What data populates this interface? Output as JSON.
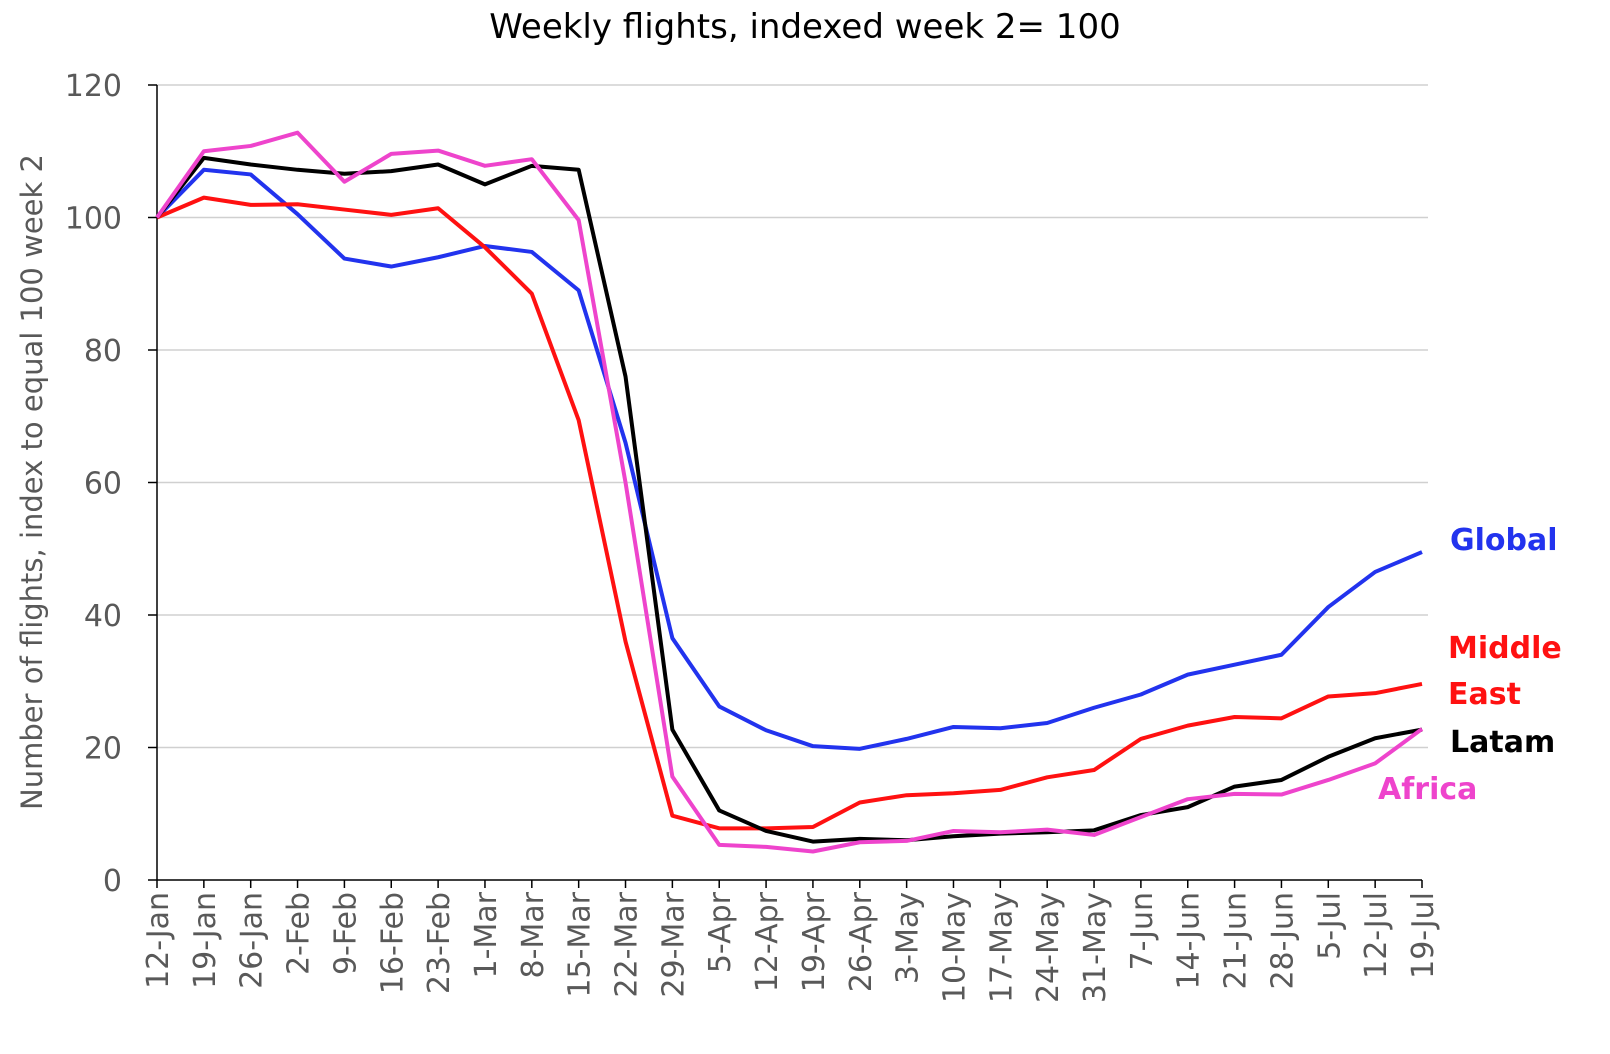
{
  "chart_data": {
    "type": "line",
    "title": "Weekly flights, indexed week 2= 100",
    "y_label": "Number of flights, index to equal 100 week 2",
    "categories": [
      "12-Jan",
      "19-Jan",
      "26-Jan",
      "2-Feb",
      "9-Feb",
      "16-Feb",
      "23-Feb",
      "1-Mar",
      "8-Mar",
      "15-Mar",
      "22-Mar",
      "29-Mar",
      "5-Apr",
      "12-Apr",
      "19-Apr",
      "26-Apr",
      "3-May",
      "10-May",
      "17-May",
      "24-May",
      "31-May",
      "7-Jun",
      "14-Jun",
      "21-Jun",
      "28-Jun",
      "5-Jul",
      "12-Jul",
      "19-Jul"
    ],
    "series": [
      {
        "name": "Global",
        "color": "#2233ee",
        "values": [
          100,
          107.2,
          106.5,
          100.5,
          93.8,
          92.6,
          94,
          95.7,
          94.8,
          89,
          66,
          36.5,
          26.2,
          22.6,
          20.2,
          19.8,
          21.3,
          23.1,
          22.9,
          23.7,
          26,
          28,
          31,
          32.5,
          34,
          41.2,
          46.5,
          49.5
        ]
      },
      {
        "name": "Middle East",
        "color": "#ff1111",
        "values": [
          100,
          103,
          101.9,
          102,
          101.2,
          100.4,
          101.4,
          95.5,
          88.5,
          69.4,
          36,
          9.7,
          7.8,
          7.8,
          8,
          11.7,
          12.8,
          13.1,
          13.6,
          15.5,
          16.6,
          21.3,
          23.3,
          24.6,
          24.4,
          27.7,
          28.2,
          29.6
        ]
      },
      {
        "name": "Latam",
        "color": "#000000",
        "values": [
          100,
          109,
          108,
          107.2,
          106.6,
          107,
          108,
          105,
          107.8,
          107.2,
          76,
          22.7,
          10.5,
          7.4,
          5.8,
          6.2,
          6,
          6.6,
          7,
          7.2,
          7.5,
          9.8,
          11,
          14.1,
          15.1,
          18.6,
          21.4,
          22.7
        ]
      },
      {
        "name": "Africa",
        "color": "#ee44cc",
        "values": [
          100,
          110,
          110.8,
          112.8,
          105.4,
          109.6,
          110.1,
          107.8,
          108.8,
          99.6,
          60,
          15.6,
          5.3,
          5,
          4.3,
          5.7,
          5.9,
          7.4,
          7.2,
          7.6,
          6.8,
          9.5,
          12.2,
          13,
          12.9,
          15.1,
          17.6,
          22.8
        ]
      }
    ],
    "ylim": [
      0,
      120
    ],
    "yticks": [
      0,
      20,
      40,
      60,
      80,
      100,
      120
    ],
    "grid": true
  }
}
